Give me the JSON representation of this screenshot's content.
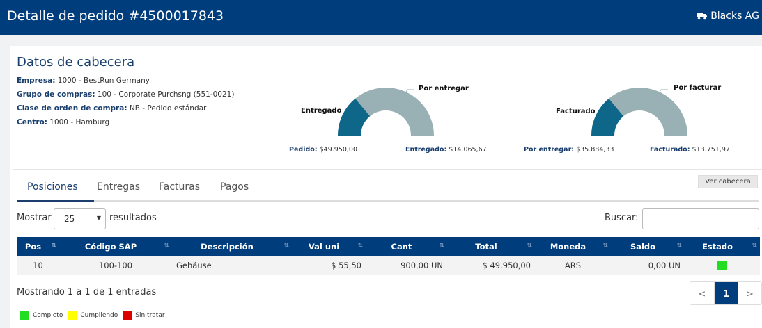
{
  "header": {
    "title": "Detalle de pedido #4500017843",
    "brand": "Blacks AG",
    "brand_icon": "truck-icon"
  },
  "cabecera": {
    "title": "Datos de cabecera",
    "fields": [
      {
        "label": "Empresa:",
        "value": " 1000 - BestRun Germany"
      },
      {
        "label": "Grupo de compras:",
        "value": " 100 - Corporate Purchsng (551-0021)"
      },
      {
        "label": "Clase de orden de compra:",
        "value": " NB - Pedido estándar"
      },
      {
        "label": "Centro:",
        "value": " 1000 - Hamburg"
      }
    ]
  },
  "gauges": [
    {
      "label_done": "Entregado",
      "label_pending": "Por entregar",
      "done_fraction": 0.28,
      "footer": [
        {
          "label": "Pedido:",
          "value": " $49.950,00"
        },
        {
          "label": "Entregado:",
          "value": " $14.065,67"
        }
      ]
    },
    {
      "label_done": "Facturado",
      "label_pending": "Por facturar",
      "done_fraction": 0.28,
      "footer": [
        {
          "label": "Por entregar:",
          "value": " $35.884,33"
        },
        {
          "label": "Facturado:",
          "value": " $13.751,97"
        }
      ]
    }
  ],
  "colors": {
    "primary": "#003d7c",
    "gauge_done": "#0e6789",
    "gauge_pending": "#99b0b5",
    "completo": "#22dd22",
    "cumpliendo": "#ffff00",
    "sin_tratar": "#dd0000"
  },
  "tabs": [
    "Posiciones",
    "Entregas",
    "Facturas",
    "Pagos"
  ],
  "ver_cabecera": "Ver cabecera",
  "controls": {
    "show_label": "Mostrar",
    "page_size": "25",
    "results_label": "resultados",
    "search_label": "Buscar:"
  },
  "table": {
    "headers": [
      "Pos",
      "Código SAP",
      "Descripción",
      "Val uni",
      "Cant",
      "Total",
      "Moneda",
      "Saldo",
      "Estado"
    ],
    "rows": [
      {
        "pos": "10",
        "codigo": "100-100",
        "descripcion": "Gehäuse",
        "val_uni": "$ 55,50",
        "cant": "900,00 UN",
        "total": "$ 49.950,00",
        "moneda": "ARS",
        "saldo": "0,00 UN",
        "estado": "Completo"
      }
    ]
  },
  "footer": {
    "showing": "Mostrando 1 a 1 de 1 entradas",
    "prev": "<",
    "page": "1",
    "next": ">"
  },
  "legend": [
    "Completo",
    "Cumpliendo",
    "Sin tratar"
  ]
}
